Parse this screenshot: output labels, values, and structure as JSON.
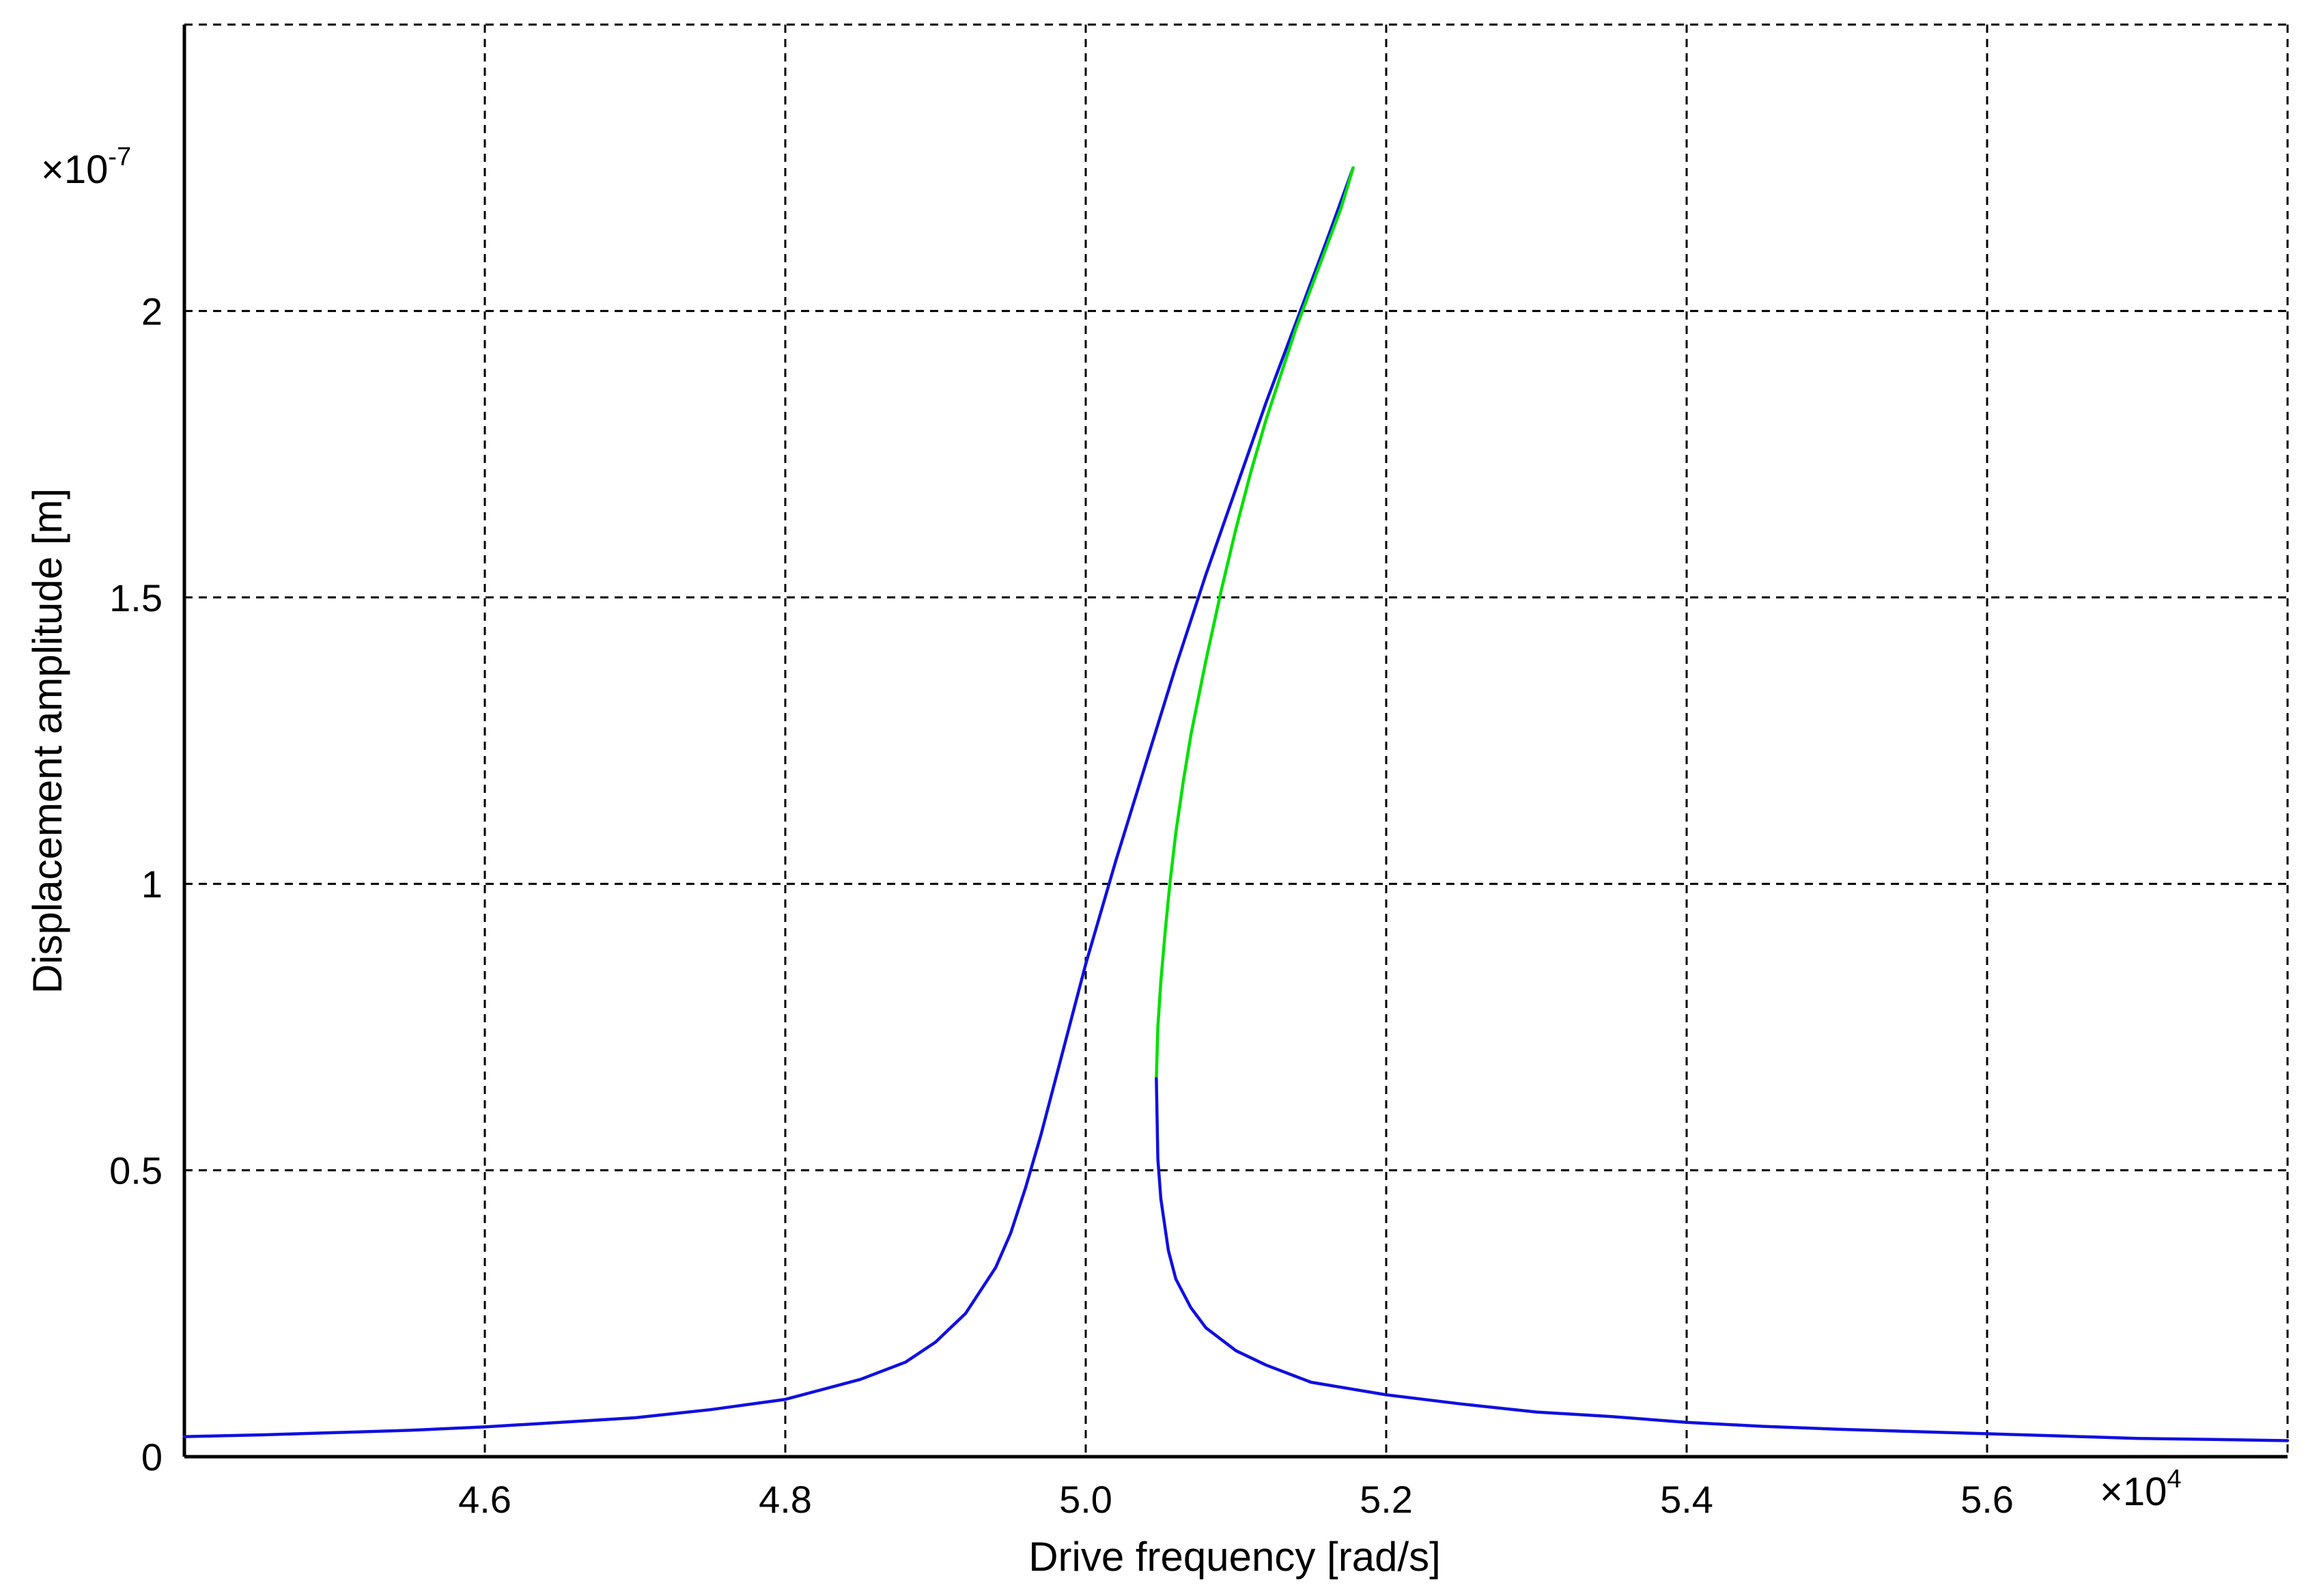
{
  "chart_data": {
    "type": "line",
    "title": "",
    "xlabel": "Drive frequency [rad/s]",
    "ylabel": "Displacement amplitude [m]",
    "x_multiplier_label": "×10",
    "x_multiplier_exponent": "4",
    "y_multiplier_label": "×10",
    "y_multiplier_exponent": "-7",
    "xlim": [
      4.4,
      5.8
    ],
    "ylim": [
      0,
      2.5
    ],
    "xticks": [
      4.6,
      4.8,
      5.0,
      5.2,
      5.4,
      5.6
    ],
    "xtick_labels": [
      "4.6",
      "4.8",
      "5.0",
      "5.2",
      "5.4",
      "5.6"
    ],
    "yticks": [
      0,
      0.5,
      1,
      1.5,
      2
    ],
    "ytick_labels": [
      "0",
      "0.5",
      "1",
      "1.5",
      "2"
    ],
    "grid": true,
    "series": [
      {
        "color": "#1010e0",
        "x": [
          4.4,
          4.45,
          4.5,
          4.55,
          4.6,
          4.65,
          4.7,
          4.75,
          4.8,
          4.85,
          4.88,
          4.9,
          4.92,
          4.94,
          4.95,
          4.96,
          4.97,
          4.98,
          4.99,
          5.0,
          5.02,
          5.04,
          5.06,
          5.08,
          5.1,
          5.12,
          5.14,
          5.16,
          5.178
        ],
        "y": [
          0.035,
          0.038,
          0.042,
          0.046,
          0.052,
          0.06,
          0.068,
          0.082,
          0.1,
          0.135,
          0.165,
          0.2,
          0.25,
          0.33,
          0.39,
          0.47,
          0.56,
          0.66,
          0.76,
          0.86,
          1.04,
          1.21,
          1.38,
          1.54,
          1.69,
          1.84,
          1.98,
          2.12,
          2.25
        ]
      },
      {
        "color": "#00e000",
        "x": [
          5.047,
          5.048,
          5.05,
          5.053,
          5.056,
          5.06,
          5.065,
          5.07,
          5.08,
          5.09,
          5.1,
          5.11,
          5.12,
          5.13,
          5.14,
          5.15,
          5.16,
          5.17,
          5.178
        ],
        "y": [
          0.66,
          0.75,
          0.83,
          0.92,
          1.0,
          1.09,
          1.18,
          1.26,
          1.39,
          1.51,
          1.62,
          1.72,
          1.81,
          1.89,
          1.97,
          2.04,
          2.11,
          2.18,
          2.25
        ]
      },
      {
        "color": "#1010e0",
        "x": [
          5.047,
          5.048,
          5.05,
          5.055,
          5.06,
          5.07,
          5.08,
          5.1,
          5.12,
          5.15,
          5.2,
          5.25,
          5.3,
          5.35,
          5.4,
          5.45,
          5.5,
          5.55,
          5.6,
          5.65,
          5.7,
          5.75,
          5.8
        ],
        "y": [
          0.66,
          0.52,
          0.45,
          0.36,
          0.31,
          0.26,
          0.225,
          0.185,
          0.16,
          0.13,
          0.108,
          0.092,
          0.078,
          0.07,
          0.06,
          0.053,
          0.048,
          0.044,
          0.04,
          0.036,
          0.032,
          0.03,
          0.028
        ]
      }
    ]
  }
}
